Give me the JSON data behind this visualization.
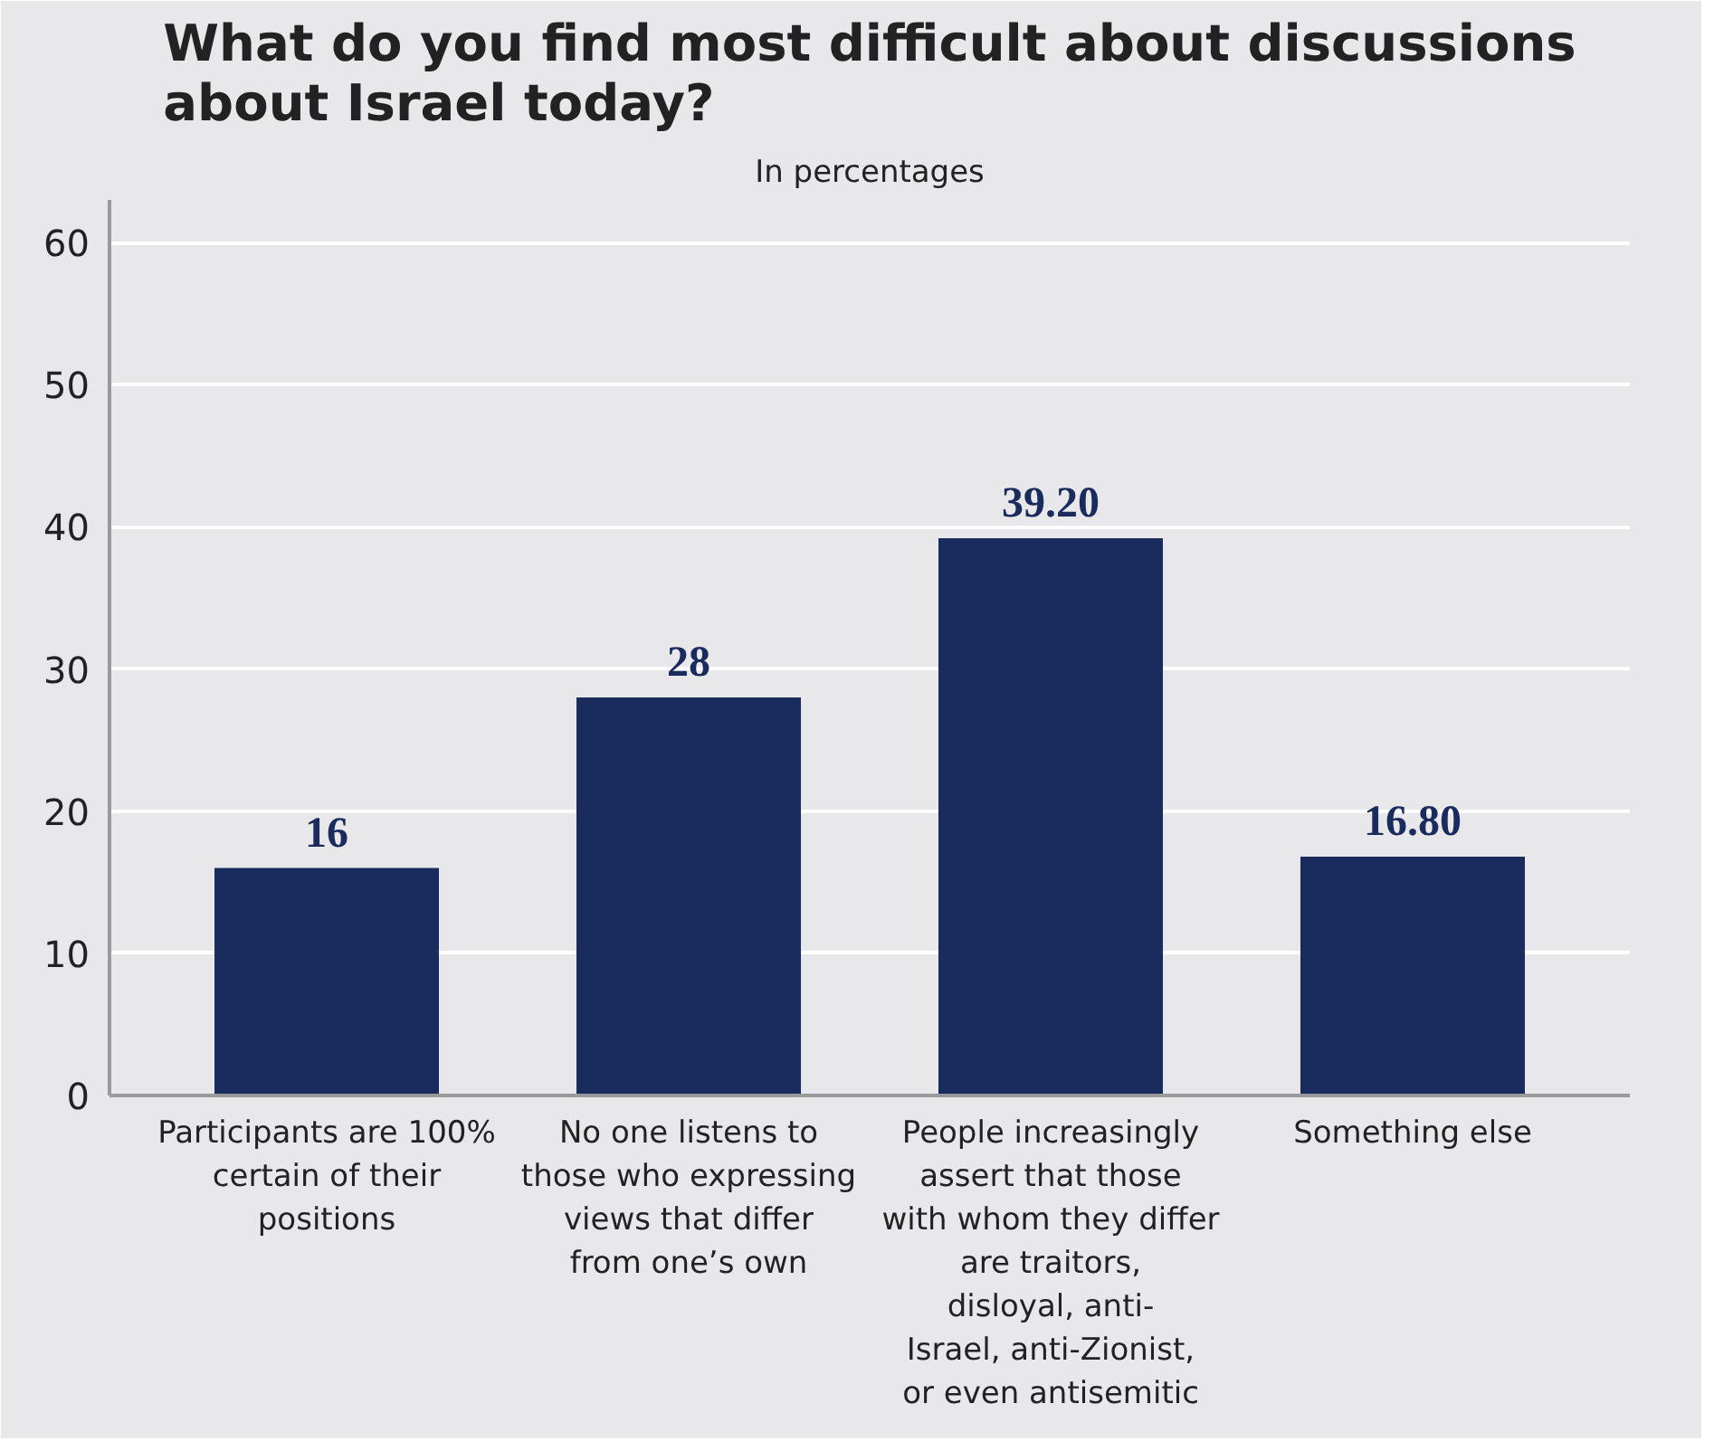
{
  "chart_data": {
    "type": "bar",
    "title": "What do you find most difficult about discussions about Israel today?",
    "subtitle": "In percentages",
    "categories": [
      "Participants are 100% certain of their positions",
      "No one listens to those who expressing views that differ from one’s own",
      "People increasingly assert that those with whom they differ are traitors, disloyal, anti-Israel, anti-Zionist, or even antisemitic",
      "Something else"
    ],
    "values": [
      16,
      28,
      39.2,
      16.8
    ],
    "value_labels": [
      "16",
      "28",
      "39.20",
      "16.80"
    ],
    "color": "#1a2b5e",
    "ylim": [
      0,
      63
    ],
    "yticks": [
      0,
      10,
      20,
      30,
      40,
      50,
      60
    ],
    "grid": "y"
  }
}
